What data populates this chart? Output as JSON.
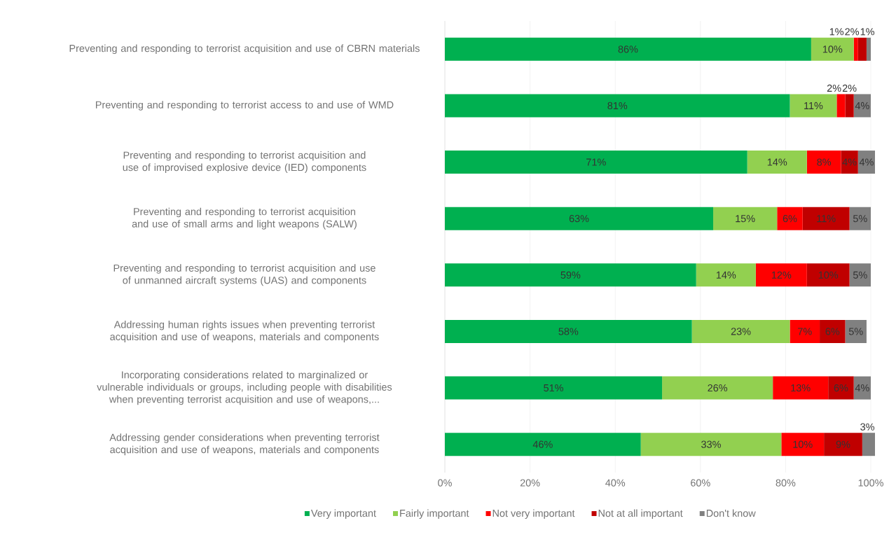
{
  "chart_data": {
    "type": "bar",
    "orientation": "horizontal",
    "stacked": true,
    "grid": "x",
    "legend": "bottom",
    "categories": [
      "Preventing and responding to terrorist acquisition and use of CBRN materials",
      "Preventing and responding to terrorist access to and use of WMD",
      "Preventing and responding to terrorist acquisition and use of improvised explosive device (IED) components",
      "Preventing and responding to terrorist acquisition and use of small arms and light weapons (SALW)",
      "Preventing and responding to terrorist acquisition and use of unmanned aircraft systems (UAS) and components",
      "Addressing human rights issues when preventing terrorist acquisition and use of weapons, materials and components",
      "Incorporating considerations related to marginalized or vulnerable individuals or groups, including people with disabilities when preventing terrorist acquisition and use of weapons,...",
      "Addressing gender considerations when preventing terrorist acquisition and use of weapons, materials and components"
    ],
    "xlim": [
      0,
      101
    ],
    "xticks": [
      {
        "value": 0,
        "label": "0%"
      },
      {
        "value": 20,
        "label": "20%"
      },
      {
        "value": 40,
        "label": "40%"
      },
      {
        "value": 60,
        "label": "60%"
      },
      {
        "value": 80,
        "label": "80%"
      },
      {
        "value": 100,
        "label": "100%"
      }
    ],
    "series": [
      {
        "name": "Very important",
        "color": "#00b050",
        "values": [
          86,
          81,
          71,
          63,
          59,
          58,
          51,
          46
        ],
        "value_labels": [
          "86%",
          "81%",
          "71%",
          "63%",
          "59%",
          "58%",
          "51%",
          "46%"
        ]
      },
      {
        "name": "Fairly important",
        "color": "#92d050",
        "values": [
          10,
          11,
          14,
          15,
          14,
          23,
          26,
          33
        ],
        "value_labels": [
          "10%",
          "11%",
          "14%",
          "15%",
          "14%",
          "23%",
          "26%",
          "33%"
        ]
      },
      {
        "name": "Not very important",
        "color": "#ff0000",
        "values": [
          1,
          2,
          8,
          6,
          12,
          7,
          13,
          10
        ],
        "value_labels": [
          "1%",
          "2%",
          "8%",
          "6%",
          "12%",
          "7%",
          "13%",
          "10%"
        ]
      },
      {
        "name": "Not at all important",
        "color": "#c00000",
        "values": [
          2,
          2,
          4,
          11,
          10,
          6,
          6,
          9
        ],
        "value_labels": [
          "2%",
          "2%",
          "4%",
          "11%",
          "10%",
          "6%",
          "6%",
          "9%"
        ]
      },
      {
        "name": "Don't know",
        "color": "#808080",
        "values": [
          1,
          4,
          4,
          5,
          5,
          5,
          4,
          3
        ],
        "value_labels": [
          "1%",
          "4%",
          "4%",
          "5%",
          "5%",
          "5%",
          "4%",
          "3%"
        ]
      }
    ]
  }
}
